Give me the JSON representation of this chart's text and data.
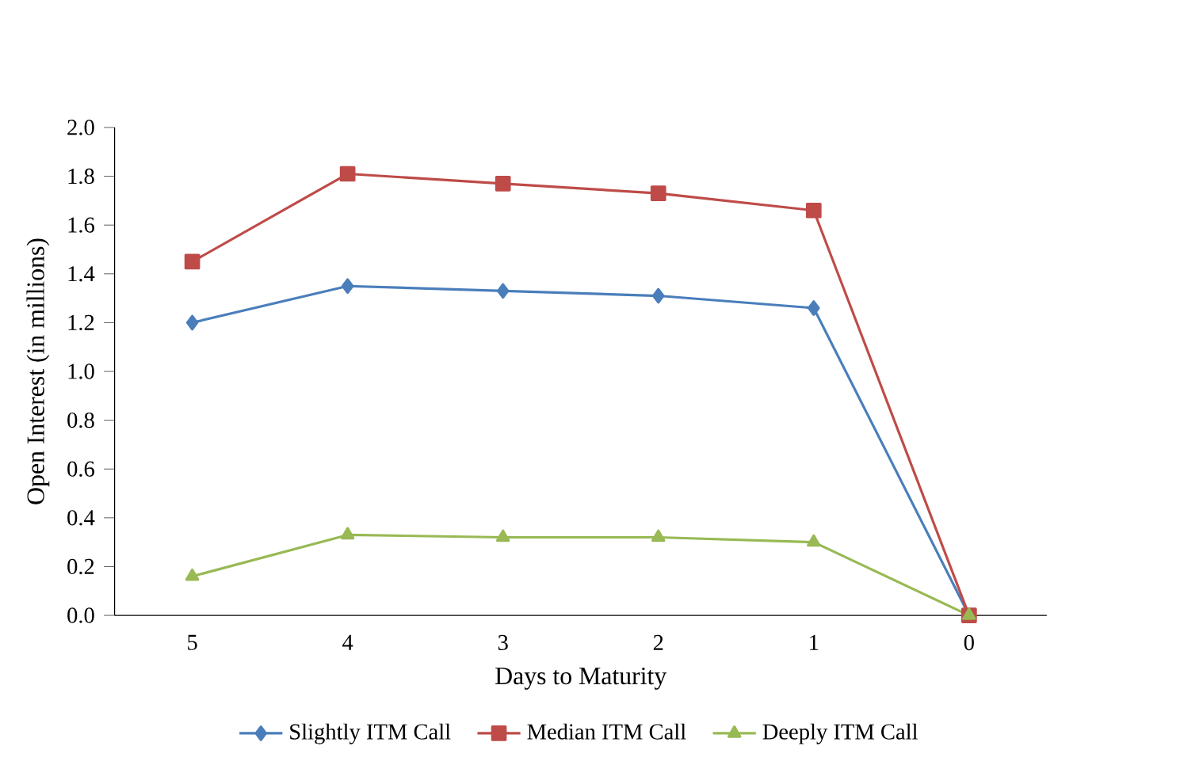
{
  "chart_data": {
    "type": "line",
    "xlabel": "Days to Maturity",
    "ylabel": "Open Interest (in millions)",
    "categories": [
      "5",
      "4",
      "3",
      "2",
      "1",
      "0"
    ],
    "ylim": [
      0,
      2
    ],
    "yticks": [
      {
        "value": 0,
        "label": "0.0"
      },
      {
        "value": 0.2,
        "label": "0.2"
      },
      {
        "value": 0.4,
        "label": "0.4"
      },
      {
        "value": 0.6,
        "label": "0.6"
      },
      {
        "value": 0.8,
        "label": "0.8"
      },
      {
        "value": 1,
        "label": "1.0"
      },
      {
        "value": 1.2,
        "label": "1.2"
      },
      {
        "value": 1.4,
        "label": "1.4"
      },
      {
        "value": 1.6,
        "label": "1.6"
      },
      {
        "value": 1.8,
        "label": "1.8"
      },
      {
        "value": 2,
        "label": "2.0"
      }
    ],
    "legend": "bottom",
    "grid": false,
    "series": [
      {
        "name": "Slightly ITM Call",
        "color": "#4a7ebb",
        "marker": "diamond",
        "values": [
          1.2,
          1.35,
          1.33,
          1.31,
          1.26,
          0
        ]
      },
      {
        "name": "Median ITM Call",
        "color": "#be4b48",
        "marker": "square",
        "values": [
          1.45,
          1.81,
          1.77,
          1.73,
          1.66,
          0
        ]
      },
      {
        "name": "Deeply ITM Call",
        "color": "#98b954",
        "marker": "triangle",
        "values": [
          0.16,
          0.33,
          0.32,
          0.32,
          0.3,
          0
        ]
      }
    ]
  }
}
